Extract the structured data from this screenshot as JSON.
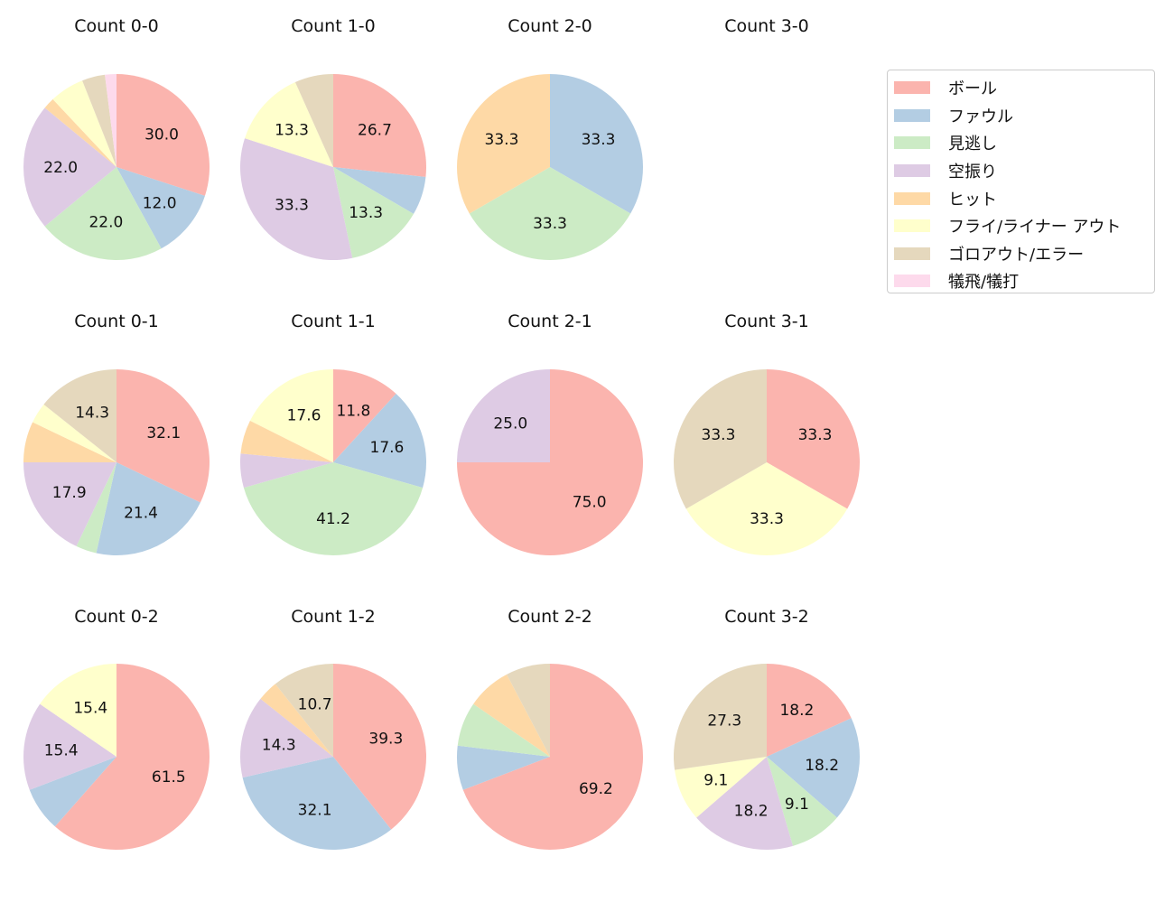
{
  "chart_data": [
    {
      "type": "pie",
      "title": "Count 0-0",
      "values": [
        30.0,
        12.0,
        22.0,
        22.0,
        2.0,
        6.0,
        4.0,
        2.0
      ]
    },
    {
      "type": "pie",
      "title": "Count 1-0",
      "values": [
        26.7,
        6.7,
        13.3,
        33.3,
        0,
        13.3,
        6.7,
        0
      ]
    },
    {
      "type": "pie",
      "title": "Count 2-0",
      "values": [
        0,
        33.3,
        33.3,
        0,
        33.3,
        0,
        0,
        0
      ]
    },
    {
      "type": "pie",
      "title": "Count 3-0",
      "values": []
    },
    {
      "type": "pie",
      "title": "Count 0-1",
      "values": [
        32.1,
        21.4,
        3.6,
        17.9,
        7.1,
        3.6,
        14.3,
        0
      ]
    },
    {
      "type": "pie",
      "title": "Count 1-1",
      "values": [
        11.8,
        17.6,
        41.2,
        5.9,
        5.9,
        17.6,
        0,
        0
      ]
    },
    {
      "type": "pie",
      "title": "Count 2-1",
      "values": [
        75.0,
        0,
        0,
        25.0,
        0,
        0,
        0,
        0
      ]
    },
    {
      "type": "pie",
      "title": "Count 3-1",
      "values": [
        33.3,
        0,
        0,
        0,
        0,
        33.3,
        33.3,
        0
      ]
    },
    {
      "type": "pie",
      "title": "Count 0-2",
      "values": [
        61.5,
        7.7,
        0,
        15.4,
        0,
        15.4,
        0,
        0
      ]
    },
    {
      "type": "pie",
      "title": "Count 1-2",
      "values": [
        39.3,
        32.1,
        0,
        14.3,
        3.6,
        0,
        10.7,
        0
      ]
    },
    {
      "type": "pie",
      "title": "Count 2-2",
      "values": [
        69.2,
        7.7,
        7.7,
        0,
        7.7,
        0,
        7.7,
        0
      ]
    },
    {
      "type": "pie",
      "title": "Count 3-2",
      "values": [
        18.2,
        18.2,
        9.1,
        18.2,
        0,
        9.1,
        27.3,
        0
      ]
    }
  ],
  "legend": {
    "placement": "right",
    "items": [
      {
        "label": "ボール",
        "color": "#fbb4ae"
      },
      {
        "label": "ファウル",
        "color": "#b3cde3"
      },
      {
        "label": "見逃し",
        "color": "#ccebc5"
      },
      {
        "label": "空振り",
        "color": "#decbe4"
      },
      {
        "label": "ヒット",
        "color": "#fed9a6"
      },
      {
        "label": "フライ/ライナー アウト",
        "color": "#ffffcc"
      },
      {
        "label": "ゴロアウト/エラー",
        "color": "#e5d8bd"
      },
      {
        "label": "犠飛/犠打",
        "color": "#fddaec"
      }
    ]
  }
}
